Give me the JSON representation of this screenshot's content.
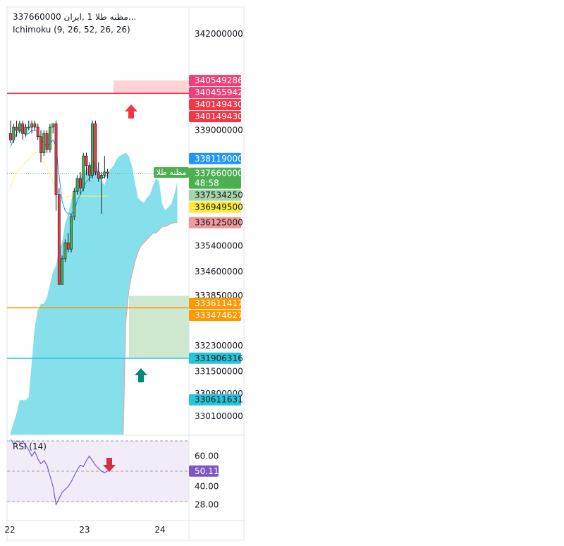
{
  "legend": {
    "symbol_title": "مظنه طلا 1 ,ایران  337660000...",
    "ichimoku_label": "Ichimoku (9, 26, 52, 26, 26)",
    "rsi_label": "RSI (14)"
  },
  "price_scale": {
    "ticks": [
      "342000000",
      "339000000",
      "335400000",
      "334600000",
      "333850000",
      "332300000",
      "331500000",
      "330800000",
      "330100000"
    ],
    "tick_values": [
      342000000,
      339000000,
      335400000,
      334600000,
      333850000,
      332300000,
      331500000,
      330800000,
      330100000
    ]
  },
  "price_labels": [
    {
      "text": "340549286",
      "value": 340549286,
      "color": "#ec407a"
    },
    {
      "text": "340455942",
      "value": 340455942,
      "color": "#ec407a"
    },
    {
      "text": "340149430",
      "value": 340149430,
      "color": "#f23645"
    },
    {
      "text": "340149430",
      "value": 340149430,
      "color": "#f23645"
    },
    {
      "text": "338119000",
      "value": 338119000,
      "color": "#2196f3"
    },
    {
      "text": "337660000",
      "value": 337660000,
      "color": "#4caf50",
      "countdown": "48:58"
    },
    {
      "text": "337534250",
      "value": 337534250,
      "color": "#a5d6a7",
      "text_color": "#131722"
    },
    {
      "text": "336949500",
      "value": 336949500,
      "color": "#ffeb3b",
      "text_color": "#131722"
    },
    {
      "text": "336125000",
      "value": 336125000,
      "color": "#ef9a9a",
      "text_color": "#131722"
    },
    {
      "text": "333611417",
      "value": 333611417,
      "color": "#ff9800"
    },
    {
      "text": "333474627",
      "value": 333474627,
      "color": "#ff9800"
    },
    {
      "text": "331906316",
      "value": 331906316,
      "color": "#26c6da",
      "text_color": "#131722"
    },
    {
      "text": "330611631",
      "value": 330611631,
      "color": "#26c6da",
      "text_color": "#131722"
    }
  ],
  "current_price_tag": "مظنه طلا",
  "rsi": {
    "ticks": [
      "60.00",
      "40.00",
      "28.00"
    ],
    "tick_values": [
      60,
      40,
      28
    ],
    "value_label": "50.11",
    "value": 50.11,
    "band_upper": 70,
    "band_lower": 30,
    "midline": 50,
    "color": "#7e57c2"
  },
  "time_axis": {
    "labels": [
      "22",
      "23",
      "24"
    ]
  },
  "chart_data": {
    "type": "candlestick",
    "horizontal_lines": [
      {
        "value": 340149430,
        "color": "#f23645"
      },
      {
        "value": 333474627,
        "color": "#ff9800"
      },
      {
        "value": 331906316,
        "color": "#26c6da"
      }
    ],
    "zones": [
      {
        "kind": "sell",
        "from": 340149430,
        "to": 340549286,
        "color": "#ffcdd2"
      },
      {
        "kind": "buy",
        "from": 331906316,
        "to": 333850000,
        "color": "#c8e6c9"
      }
    ],
    "arrows": [
      {
        "direction": "up",
        "panel": "price",
        "color": "#f23645"
      },
      {
        "direction": "up",
        "panel": "price",
        "color": "#00897b"
      },
      {
        "direction": "down",
        "panel": "rsi",
        "color": "#d32f4a"
      }
    ],
    "candles": [
      {
        "o": 338900000,
        "h": 339300000,
        "l": 338600000,
        "c": 338700000
      },
      {
        "o": 338700000,
        "h": 339200000,
        "l": 338600000,
        "c": 339100000
      },
      {
        "o": 339100000,
        "h": 339300000,
        "l": 338800000,
        "c": 339000000
      },
      {
        "o": 339000000,
        "h": 339300000,
        "l": 338900000,
        "c": 339200000
      },
      {
        "o": 339200000,
        "h": 339300000,
        "l": 338700000,
        "c": 338900000
      },
      {
        "o": 338900000,
        "h": 339200000,
        "l": 338800000,
        "c": 339100000
      },
      {
        "o": 339100000,
        "h": 339300000,
        "l": 339000000,
        "c": 339100000
      },
      {
        "o": 339100000,
        "h": 339300000,
        "l": 338900000,
        "c": 339200000
      },
      {
        "o": 339200000,
        "h": 339300000,
        "l": 339000000,
        "c": 339100000
      },
      {
        "o": 339100000,
        "h": 339200000,
        "l": 338700000,
        "c": 338800000
      },
      {
        "o": 338800000,
        "h": 339000000,
        "l": 338000000,
        "c": 338300000
      },
      {
        "o": 338300000,
        "h": 339000000,
        "l": 338200000,
        "c": 338900000
      },
      {
        "o": 338900000,
        "h": 339000000,
        "l": 338300000,
        "c": 338400000
      },
      {
        "o": 338400000,
        "h": 339200000,
        "l": 338300000,
        "c": 339100000
      },
      {
        "o": 339100000,
        "h": 339200000,
        "l": 338900000,
        "c": 339200000
      },
      {
        "o": 339200000,
        "h": 339300000,
        "l": 336500000,
        "c": 337000000
      },
      {
        "o": 337000000,
        "h": 337200000,
        "l": 334200000,
        "c": 334200000
      },
      {
        "o": 334200000,
        "h": 335100000,
        "l": 334200000,
        "c": 335000000
      },
      {
        "o": 335000000,
        "h": 335600000,
        "l": 334900000,
        "c": 335500000
      },
      {
        "o": 335500000,
        "h": 335800000,
        "l": 335200000,
        "c": 335300000
      },
      {
        "o": 335300000,
        "h": 336400000,
        "l": 335200000,
        "c": 336300000
      },
      {
        "o": 336300000,
        "h": 337200000,
        "l": 336200000,
        "c": 337100000
      },
      {
        "o": 337100000,
        "h": 337600000,
        "l": 337000000,
        "c": 337500000
      },
      {
        "o": 337500000,
        "h": 337700000,
        "l": 337000000,
        "c": 337200000
      },
      {
        "o": 337200000,
        "h": 338300000,
        "l": 337100000,
        "c": 338200000
      },
      {
        "o": 338200000,
        "h": 338300000,
        "l": 337600000,
        "c": 337900000
      },
      {
        "o": 337900000,
        "h": 338000000,
        "l": 337400000,
        "c": 337600000
      },
      {
        "o": 337600000,
        "h": 339300000,
        "l": 337500000,
        "c": 339200000
      },
      {
        "o": 339200000,
        "h": 339300000,
        "l": 337600000,
        "c": 337700000
      },
      {
        "o": 337700000,
        "h": 338000000,
        "l": 337400000,
        "c": 337500000
      },
      {
        "o": 337500000,
        "h": 337700000,
        "l": 336400000,
        "c": 337600000
      },
      {
        "o": 337600000,
        "h": 338200000,
        "l": 337500000,
        "c": 337700000
      },
      {
        "o": 337700000,
        "h": 337800000,
        "l": 337500000,
        "c": 337660000
      }
    ],
    "ichimoku": {
      "conversion": [
        338500000,
        338700000,
        338900000,
        339000000,
        338950000,
        338850000,
        338900000,
        339000000,
        339000000,
        338950000,
        338700000,
        338600000,
        338500000,
        338600000,
        338700000,
        338500000,
        337600000,
        336800000,
        336500000,
        336400000,
        336400000,
        336500000,
        336800000,
        337000000,
        337200000,
        337400000,
        337500000,
        337600000,
        337700000,
        337600000,
        337500000,
        337550000,
        337600000
      ],
      "base": [
        337200000,
        337500000,
        337700000,
        337800000,
        337900000,
        338000000,
        338100000,
        338200000,
        338300000,
        338300000,
        338200000,
        338000000,
        337800000,
        337600000,
        337400000,
        337200000,
        337000000,
        336900000,
        336900000,
        336950000,
        336950000,
        336950000,
        336950000,
        336950000,
        336950000,
        336950000,
        336950000,
        336950000,
        336950000,
        336950000,
        336950000,
        336950000,
        336950000
      ],
      "cloud_upper": [
        329600000,
        329900000,
        330200000,
        330600000,
        330600000,
        330600000,
        330700000,
        331800000,
        332900000,
        333400000,
        333600000,
        333600000,
        333800000,
        334200000,
        334600000,
        334800000,
        335300000,
        335500000,
        336100000,
        336400000,
        336800000,
        337200000,
        337400000,
        337600000,
        337650000,
        337800000,
        337900000,
        338000000,
        338100000,
        337700000,
        337400000,
        337300000,
        337600000,
        337800000,
        337900000,
        338100000,
        338200000,
        338250000,
        338300000,
        338200000,
        337900000,
        337400000,
        336900000,
        336800000,
        336750000,
        336900000,
        337000000,
        337300000,
        337500000,
        337400000,
        336700000,
        336500000,
        336600000,
        336700000,
        337000000,
        337400000
      ],
      "cloud_lower": [
        328800000,
        328800000,
        328800000,
        328800000,
        328800000,
        328800000,
        328800000,
        328800000,
        328800000,
        328800000,
        328800000,
        328800000,
        328800000,
        328800000,
        328800000,
        328800000,
        328800000,
        328800000,
        328800000,
        328800000,
        328800000,
        328800000,
        328800000,
        328800000,
        328800000,
        328800000,
        328800000,
        328800000,
        328800000,
        328800000,
        328800000,
        328800000,
        328800000,
        328800000,
        328800000,
        328800000,
        328800000,
        328800000,
        333000000,
        334000000,
        334500000,
        334900000,
        335200000,
        335400000,
        335500000,
        335600000,
        335700000,
        335800000,
        335800000,
        335900000,
        336000000,
        336000000,
        336050000,
        336100000,
        336120000,
        336125000
      ]
    },
    "rsi_series": [
      71,
      68,
      70,
      69,
      70,
      67,
      64,
      60,
      63,
      58,
      55,
      57,
      54,
      47,
      40,
      28,
      32,
      36,
      38,
      40,
      43,
      47,
      51,
      54,
      53,
      57,
      60,
      57,
      54,
      52,
      50,
      49,
      50.11
    ]
  }
}
